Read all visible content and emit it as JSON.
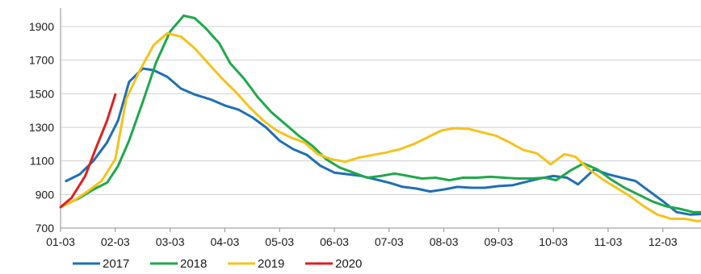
{
  "chart_data": {
    "type": "line",
    "title": "",
    "xlabel": "",
    "ylabel": "",
    "x_ticks": [
      "01-03",
      "02-03",
      "03-03",
      "04-03",
      "05-03",
      "06-03",
      "07-03",
      "08-03",
      "09-03",
      "10-03",
      "11-03",
      "12-03"
    ],
    "y_ticks": [
      700,
      900,
      1100,
      1300,
      1500,
      1700,
      1900
    ],
    "ylim": [
      700,
      2010
    ],
    "xlim": [
      0,
      11.8
    ],
    "grid": "horizontal",
    "legend_position": "bottom-left",
    "series": [
      {
        "name": "2017",
        "color": "#1f6fb4",
        "points": [
          [
            0.1,
            980
          ],
          [
            0.35,
            1020
          ],
          [
            0.6,
            1100
          ],
          [
            0.85,
            1210
          ],
          [
            1.05,
            1340
          ],
          [
            1.25,
            1570
          ],
          [
            1.5,
            1650
          ],
          [
            1.7,
            1640
          ],
          [
            1.95,
            1600
          ],
          [
            2.2,
            1530
          ],
          [
            2.45,
            1495
          ],
          [
            2.75,
            1465
          ],
          [
            3.0,
            1430
          ],
          [
            3.25,
            1405
          ],
          [
            3.5,
            1360
          ],
          [
            3.75,
            1300
          ],
          [
            4.0,
            1220
          ],
          [
            4.25,
            1170
          ],
          [
            4.5,
            1135
          ],
          [
            4.75,
            1070
          ],
          [
            5.0,
            1030
          ],
          [
            5.25,
            1020
          ],
          [
            5.5,
            1010
          ],
          [
            5.75,
            990
          ],
          [
            6.0,
            970
          ],
          [
            6.25,
            945
          ],
          [
            6.5,
            935
          ],
          [
            6.75,
            918
          ],
          [
            7.0,
            930
          ],
          [
            7.25,
            945
          ],
          [
            7.5,
            940
          ],
          [
            7.75,
            940
          ],
          [
            8.0,
            950
          ],
          [
            8.25,
            955
          ],
          [
            8.5,
            975
          ],
          [
            8.75,
            995
          ],
          [
            9.0,
            1010
          ],
          [
            9.25,
            1000
          ],
          [
            9.45,
            960
          ],
          [
            9.75,
            1050
          ],
          [
            10.0,
            1020
          ],
          [
            10.25,
            1000
          ],
          [
            10.5,
            980
          ],
          [
            10.75,
            920
          ],
          [
            11.0,
            860
          ],
          [
            11.25,
            795
          ],
          [
            11.5,
            780
          ],
          [
            11.8,
            785
          ]
        ]
      },
      {
        "name": "2018",
        "color": "#1fa84a",
        "points": [
          [
            0.1,
            840
          ],
          [
            0.35,
            880
          ],
          [
            0.6,
            930
          ],
          [
            0.85,
            970
          ],
          [
            1.05,
            1070
          ],
          [
            1.25,
            1220
          ],
          [
            1.5,
            1450
          ],
          [
            1.75,
            1690
          ],
          [
            2.0,
            1870
          ],
          [
            2.25,
            1965
          ],
          [
            2.45,
            1950
          ],
          [
            2.65,
            1890
          ],
          [
            2.9,
            1800
          ],
          [
            3.1,
            1680
          ],
          [
            3.35,
            1590
          ],
          [
            3.6,
            1480
          ],
          [
            3.85,
            1390
          ],
          [
            4.1,
            1320
          ],
          [
            4.35,
            1250
          ],
          [
            4.6,
            1190
          ],
          [
            4.85,
            1110
          ],
          [
            5.1,
            1060
          ],
          [
            5.35,
            1030
          ],
          [
            5.6,
            1000
          ],
          [
            5.85,
            1010
          ],
          [
            6.1,
            1025
          ],
          [
            6.35,
            1010
          ],
          [
            6.6,
            995
          ],
          [
            6.85,
            1000
          ],
          [
            7.1,
            985
          ],
          [
            7.35,
            1000
          ],
          [
            7.6,
            1000
          ],
          [
            7.85,
            1005
          ],
          [
            8.1,
            1000
          ],
          [
            8.35,
            995
          ],
          [
            8.6,
            995
          ],
          [
            8.85,
            1000
          ],
          [
            9.05,
            985
          ],
          [
            9.3,
            1040
          ],
          [
            9.55,
            1085
          ],
          [
            9.8,
            1050
          ],
          [
            10.05,
            990
          ],
          [
            10.3,
            940
          ],
          [
            10.55,
            900
          ],
          [
            10.8,
            860
          ],
          [
            11.05,
            830
          ],
          [
            11.3,
            815
          ],
          [
            11.55,
            795
          ],
          [
            11.8,
            795
          ]
        ]
      },
      {
        "name": "2019",
        "color": "#f5c21b",
        "points": [
          [
            0.0,
            825
          ],
          [
            0.25,
            865
          ],
          [
            0.5,
            920
          ],
          [
            0.75,
            980
          ],
          [
            1.0,
            1110
          ],
          [
            1.2,
            1470
          ],
          [
            1.45,
            1640
          ],
          [
            1.7,
            1790
          ],
          [
            1.95,
            1860
          ],
          [
            2.2,
            1840
          ],
          [
            2.45,
            1770
          ],
          [
            2.7,
            1680
          ],
          [
            2.95,
            1590
          ],
          [
            3.2,
            1510
          ],
          [
            3.45,
            1420
          ],
          [
            3.7,
            1340
          ],
          [
            3.95,
            1280
          ],
          [
            4.2,
            1240
          ],
          [
            4.45,
            1210
          ],
          [
            4.7,
            1140
          ],
          [
            4.95,
            1110
          ],
          [
            5.2,
            1095
          ],
          [
            5.45,
            1120
          ],
          [
            5.7,
            1135
          ],
          [
            5.95,
            1150
          ],
          [
            6.2,
            1170
          ],
          [
            6.45,
            1200
          ],
          [
            6.7,
            1240
          ],
          [
            6.95,
            1280
          ],
          [
            7.2,
            1295
          ],
          [
            7.45,
            1290
          ],
          [
            7.7,
            1270
          ],
          [
            7.95,
            1250
          ],
          [
            8.2,
            1210
          ],
          [
            8.45,
            1165
          ],
          [
            8.7,
            1145
          ],
          [
            8.95,
            1080
          ],
          [
            9.2,
            1140
          ],
          [
            9.4,
            1125
          ],
          [
            9.65,
            1050
          ],
          [
            9.9,
            990
          ],
          [
            10.15,
            940
          ],
          [
            10.4,
            890
          ],
          [
            10.65,
            830
          ],
          [
            10.9,
            780
          ],
          [
            11.15,
            755
          ],
          [
            11.4,
            755
          ],
          [
            11.65,
            740
          ],
          [
            11.8,
            760
          ]
        ]
      },
      {
        "name": "2020",
        "color": "#e02020",
        "points": [
          [
            0.0,
            825
          ],
          [
            0.2,
            880
          ],
          [
            0.45,
            1010
          ],
          [
            0.65,
            1180
          ],
          [
            0.85,
            1340
          ],
          [
            1.0,
            1495
          ]
        ]
      }
    ]
  }
}
